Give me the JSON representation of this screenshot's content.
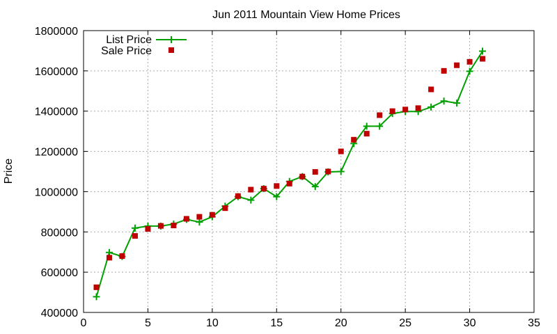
{
  "chart_data": {
    "type": "line",
    "title": "Jun 2011 Mountain View Home Prices",
    "xlabel": "",
    "ylabel": "Price",
    "xlim": [
      0,
      35
    ],
    "ylim": [
      400000,
      1800000
    ],
    "x_ticks": [
      0,
      5,
      10,
      15,
      20,
      25,
      30,
      35
    ],
    "y_ticks": [
      400000,
      600000,
      800000,
      1000000,
      1200000,
      1400000,
      1600000,
      1800000
    ],
    "grid": true,
    "legend_position": "top-left",
    "series": [
      {
        "name": "List Price",
        "style": "linespoints",
        "marker": "plus",
        "color": "#00a000",
        "x": [
          1,
          2,
          3,
          4,
          5,
          6,
          7,
          8,
          9,
          10,
          11,
          12,
          13,
          14,
          15,
          16,
          17,
          18,
          19,
          20,
          21,
          22,
          23,
          24,
          25,
          26,
          27,
          28,
          29,
          30,
          31
        ],
        "y": [
          478000,
          698000,
          678000,
          819000,
          829000,
          829000,
          839000,
          862000,
          849000,
          875000,
          928000,
          975000,
          958000,
          1015000,
          975000,
          1051000,
          1075000,
          1025000,
          1098000,
          1100000,
          1239000,
          1325000,
          1325000,
          1388000,
          1398000,
          1398000,
          1420000,
          1450000,
          1440000,
          1598000,
          1698000
        ]
      },
      {
        "name": "Sale Price",
        "style": "points",
        "marker": "square",
        "color": "#c00000",
        "x": [
          1,
          2,
          3,
          4,
          5,
          6,
          7,
          8,
          9,
          10,
          11,
          12,
          13,
          14,
          15,
          16,
          17,
          18,
          19,
          20,
          21,
          22,
          23,
          24,
          25,
          26,
          27,
          28,
          29,
          30,
          31
        ],
        "y": [
          525000,
          672000,
          680000,
          780000,
          815000,
          830000,
          832000,
          865000,
          875000,
          885000,
          918000,
          978000,
          1010000,
          1015000,
          1028000,
          1040000,
          1075000,
          1098000,
          1100000,
          1200000,
          1258000,
          1288000,
          1380000,
          1400000,
          1408000,
          1415000,
          1508000,
          1600000,
          1628000,
          1645000,
          1660000
        ]
      }
    ]
  }
}
